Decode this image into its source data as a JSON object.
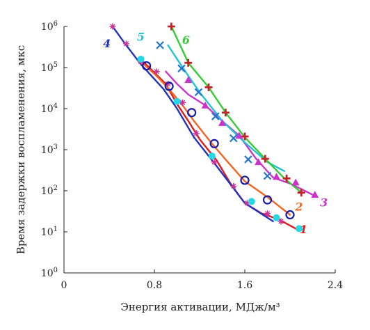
{
  "chart_data": {
    "type": "line",
    "xlabel": "Энергия активации, МДж/м³",
    "ylabel": "Время задержки воспламенения, мкс",
    "xlim": [
      0,
      2.4
    ],
    "ylim_log10": [
      0,
      6
    ],
    "y_scale": "log",
    "grid": false,
    "x_ticks": [
      {
        "v": 0,
        "label": "0"
      },
      {
        "v": 0.8,
        "label": "0.8"
      },
      {
        "v": 1.6,
        "label": "1.6"
      },
      {
        "v": 2.4,
        "label": "2.4"
      }
    ],
    "y_ticks": [
      {
        "exp": 0,
        "base": "10",
        "sup": "0"
      },
      {
        "exp": 1,
        "base": "10",
        "sup": "1"
      },
      {
        "exp": 2,
        "base": "10",
        "sup": "2"
      },
      {
        "exp": 3,
        "base": "10",
        "sup": "3"
      },
      {
        "exp": 4,
        "base": "10",
        "sup": "4"
      },
      {
        "exp": 5,
        "base": "10",
        "sup": "5"
      },
      {
        "exp": 6,
        "base": "10",
        "sup": "6"
      }
    ],
    "series": [
      {
        "label": "1",
        "color": "#e31a1c",
        "marker": "none",
        "label_pos": [
          2.12,
          1.05
        ],
        "points": [
          [
            0.7,
            140000
          ],
          [
            0.9,
            40000
          ],
          [
            1.0,
            13000
          ],
          [
            1.1,
            5000
          ],
          [
            1.2,
            1800
          ],
          [
            1.35,
            550
          ],
          [
            1.48,
            140
          ],
          [
            1.6,
            50
          ],
          [
            1.75,
            28
          ],
          [
            1.9,
            20
          ],
          [
            2.05,
            12
          ]
        ]
      },
      {
        "label": "2",
        "color": "#f26522",
        "marker": "none",
        "label_pos": [
          2.08,
          1.6
        ],
        "points": [
          [
            0.68,
            140000
          ],
          [
            0.8,
            70000
          ],
          [
            0.92,
            32000
          ],
          [
            1.05,
            12000
          ],
          [
            1.15,
            5000
          ],
          [
            1.3,
            1500
          ],
          [
            1.45,
            500
          ],
          [
            1.6,
            170
          ],
          [
            1.8,
            70
          ],
          [
            2.0,
            26
          ]
        ]
      },
      {
        "label": "3",
        "color": "#cc33cc",
        "marker": "triangle",
        "label_pos": [
          2.3,
          1.7
        ],
        "points": [
          [
            0.9,
            80000
          ],
          [
            1.0,
            40000
          ],
          [
            1.1,
            22000
          ],
          [
            1.25,
            12000
          ],
          [
            1.4,
            5000
          ],
          [
            1.55,
            2200
          ],
          [
            1.7,
            600
          ],
          [
            1.85,
            210
          ],
          [
            2.0,
            150
          ],
          [
            2.2,
            80
          ]
        ]
      },
      {
        "label": "4",
        "color": "#2233bb",
        "marker": "none",
        "label_pos": [
          0.38,
          5.58
        ],
        "points": [
          [
            0.43,
            1000000
          ],
          [
            0.55,
            350000
          ],
          [
            0.68,
            120000
          ],
          [
            0.78,
            60000
          ],
          [
            0.88,
            30000
          ],
          [
            1.0,
            10000
          ],
          [
            1.15,
            2000
          ],
          [
            1.35,
            400
          ],
          [
            1.6,
            50
          ],
          [
            1.85,
            18
          ]
        ]
      },
      {
        "label": "5",
        "color": "#21c4d6",
        "marker": "none",
        "label_pos": [
          0.68,
          5.74
        ],
        "points": [
          [
            0.92,
            350000
          ],
          [
            1.05,
            100000
          ],
          [
            1.2,
            25000
          ],
          [
            1.4,
            5000
          ],
          [
            1.6,
            1500
          ],
          [
            1.8,
            500
          ],
          [
            1.95,
            300
          ]
        ]
      },
      {
        "label": "6",
        "color": "#33cc33",
        "marker": "none",
        "label_pos": [
          1.08,
          5.66
        ],
        "points": [
          [
            0.95,
            1000000
          ],
          [
            1.1,
            130000
          ],
          [
            1.28,
            33000
          ],
          [
            1.43,
            8000
          ],
          [
            1.6,
            2000
          ],
          [
            1.78,
            600
          ],
          [
            1.95,
            200
          ],
          [
            2.1,
            90
          ]
        ]
      }
    ],
    "marker_sets": [
      {
        "kind": "star",
        "color": "#cc3399",
        "points": [
          [
            0.43,
            1000000
          ],
          [
            0.55,
            380000
          ],
          [
            0.68,
            140000
          ],
          [
            0.82,
            80000
          ],
          [
            0.92,
            40000
          ],
          [
            1.05,
            14000
          ],
          [
            1.17,
            2500
          ],
          [
            1.33,
            500
          ],
          [
            1.5,
            130
          ],
          [
            1.62,
            50
          ],
          [
            1.8,
            28
          ],
          [
            1.92,
            18
          ]
        ]
      },
      {
        "kind": "circle",
        "color": "#1a1aa8",
        "points": [
          [
            0.73,
            110000
          ],
          [
            0.93,
            35000
          ],
          [
            1.13,
            8000
          ],
          [
            1.33,
            1400
          ],
          [
            1.6,
            180
          ],
          [
            1.8,
            60
          ],
          [
            2.0,
            26
          ]
        ]
      },
      {
        "kind": "x",
        "color": "#2277cc",
        "points": [
          [
            0.85,
            350000
          ],
          [
            1.04,
            95000
          ],
          [
            1.19,
            25000
          ],
          [
            1.34,
            6500
          ],
          [
            1.5,
            1900
          ],
          [
            1.63,
            580
          ],
          [
            1.8,
            230
          ]
        ]
      },
      {
        "kind": "plus",
        "color": "#c0242a",
        "points": [
          [
            0.95,
            1000000
          ],
          [
            1.1,
            130000
          ],
          [
            1.28,
            33000
          ],
          [
            1.43,
            8000
          ],
          [
            1.6,
            2100
          ],
          [
            1.78,
            600
          ],
          [
            1.97,
            200
          ],
          [
            2.1,
            90
          ]
        ]
      },
      {
        "kind": "triangle",
        "color": "#cc33cc",
        "points": [
          [
            1.1,
            50000
          ],
          [
            1.25,
            12000
          ],
          [
            1.4,
            4500
          ],
          [
            1.55,
            2200
          ],
          [
            1.72,
            500
          ],
          [
            1.88,
            220
          ],
          [
            2.05,
            160
          ],
          [
            2.22,
            80
          ]
        ]
      },
      {
        "kind": "dot",
        "color": "#26d7e6",
        "points": [
          [
            0.68,
            160000
          ],
          [
            1.0,
            15000
          ],
          [
            1.31,
            700
          ],
          [
            1.66,
            55
          ],
          [
            1.88,
            22
          ],
          [
            2.08,
            12
          ]
        ]
      }
    ]
  }
}
